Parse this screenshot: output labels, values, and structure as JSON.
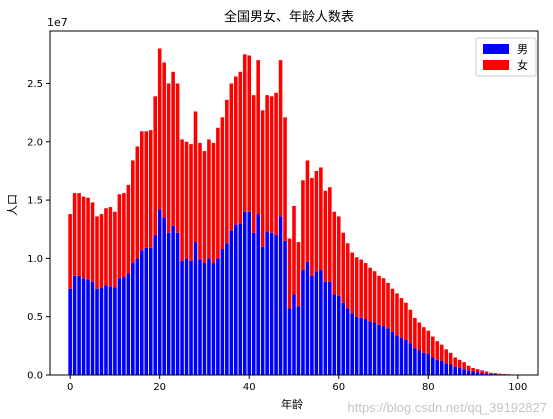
{
  "chart_data": {
    "type": "bar",
    "stacked": true,
    "title": "全国男女、年龄人数表",
    "xlabel": "年龄",
    "ylabel": "人口",
    "y_offset_label": "1e7",
    "xlim": [
      -4.5,
      104.5
    ],
    "ylim": [
      0,
      2.95
    ],
    "xticks": [
      0,
      20,
      40,
      60,
      80,
      100
    ],
    "xtick_labels": [
      "0",
      "20",
      "40",
      "60",
      "80",
      "100"
    ],
    "yticks": [
      0.0,
      0.5,
      1.0,
      1.5,
      2.0,
      2.5
    ],
    "ytick_labels": [
      "0.0",
      "0.5",
      "1.0",
      "1.5",
      "2.0",
      "2.5"
    ],
    "legend_position": "top-right",
    "ages": [
      0,
      1,
      2,
      3,
      4,
      5,
      6,
      7,
      8,
      9,
      10,
      11,
      12,
      13,
      14,
      15,
      16,
      17,
      18,
      19,
      20,
      21,
      22,
      23,
      24,
      25,
      26,
      27,
      28,
      29,
      30,
      31,
      32,
      33,
      34,
      35,
      36,
      37,
      38,
      39,
      40,
      41,
      42,
      43,
      44,
      45,
      46,
      47,
      48,
      49,
      50,
      51,
      52,
      53,
      54,
      55,
      56,
      57,
      58,
      59,
      60,
      61,
      62,
      63,
      64,
      65,
      66,
      67,
      68,
      69,
      70,
      71,
      72,
      73,
      74,
      75,
      76,
      77,
      78,
      79,
      80,
      81,
      82,
      83,
      84,
      85,
      86,
      87,
      88,
      89,
      90,
      91,
      92,
      93,
      94,
      95,
      96,
      97,
      98,
      99,
      100
    ],
    "series": [
      {
        "name": "男",
        "color": "#0000ff",
        "values": [
          0.74,
          0.85,
          0.85,
          0.83,
          0.82,
          0.8,
          0.74,
          0.75,
          0.77,
          0.76,
          0.75,
          0.83,
          0.84,
          0.87,
          0.96,
          1.0,
          1.07,
          1.09,
          1.09,
          1.2,
          1.42,
          1.35,
          1.22,
          1.28,
          1.22,
          0.98,
          1.0,
          0.98,
          1.14,
          0.99,
          0.96,
          1.0,
          0.96,
          1.0,
          1.08,
          1.13,
          1.24,
          1.29,
          1.3,
          1.4,
          1.4,
          1.22,
          1.38,
          1.1,
          1.23,
          1.22,
          1.2,
          1.36,
          1.15,
          0.57,
          0.69,
          0.59,
          0.9,
          0.97,
          0.85,
          0.89,
          0.9,
          0.8,
          0.8,
          0.69,
          0.68,
          0.62,
          0.57,
          0.53,
          0.5,
          0.49,
          0.48,
          0.46,
          0.45,
          0.43,
          0.42,
          0.4,
          0.37,
          0.34,
          0.32,
          0.3,
          0.27,
          0.23,
          0.21,
          0.19,
          0.18,
          0.15,
          0.13,
          0.12,
          0.1,
          0.09,
          0.07,
          0.06,
          0.05,
          0.04,
          0.03,
          0.025,
          0.02,
          0.015,
          0.01,
          0.008,
          0.006,
          0.004,
          0.003,
          0.002,
          0.001
        ]
      },
      {
        "name": "女",
        "color": "#ff0000",
        "values": [
          0.64,
          0.71,
          0.71,
          0.7,
          0.7,
          0.68,
          0.62,
          0.63,
          0.66,
          0.68,
          0.65,
          0.72,
          0.72,
          0.76,
          0.88,
          0.96,
          1.02,
          1.0,
          1.01,
          1.19,
          1.38,
          1.33,
          1.28,
          1.32,
          1.28,
          1.04,
          1.0,
          1.0,
          1.12,
          1.0,
          0.96,
          1.02,
          1.03,
          1.12,
          1.13,
          1.23,
          1.26,
          1.27,
          1.3,
          1.35,
          1.34,
          1.18,
          1.32,
          1.17,
          1.17,
          1.17,
          1.22,
          1.34,
          1.06,
          0.6,
          0.76,
          0.55,
          0.77,
          0.87,
          0.84,
          0.86,
          0.88,
          0.78,
          0.81,
          0.71,
          0.68,
          0.6,
          0.56,
          0.52,
          0.51,
          0.5,
          0.48,
          0.46,
          0.44,
          0.42,
          0.41,
          0.39,
          0.37,
          0.36,
          0.34,
          0.32,
          0.29,
          0.26,
          0.24,
          0.22,
          0.2,
          0.18,
          0.16,
          0.14,
          0.12,
          0.1,
          0.08,
          0.07,
          0.06,
          0.04,
          0.03,
          0.025,
          0.02,
          0.015,
          0.01,
          0.008,
          0.006,
          0.004,
          0.003,
          0.002,
          0.001
        ]
      }
    ]
  },
  "watermark": "https://blog.csdn.net/qq_39192827"
}
